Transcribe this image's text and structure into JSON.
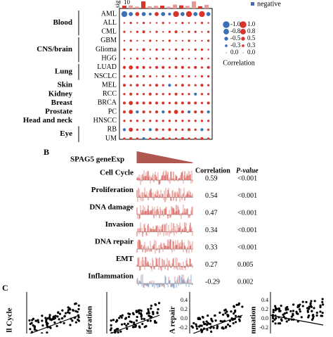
{
  "panel_a": {
    "sig_label": "sig",
    "top_tick": "10",
    "legend_negative": "negative",
    "groups": [
      {
        "label": "Blood",
        "rows": [
          {
            "label": "AML",
            "values": [
              -0.8,
              -0.5,
              0.5,
              -0.5,
              -0.3,
              0.5,
              -0.5,
              -0.3,
              0.8,
              -0.5,
              0.8,
              -0.5,
              0.8,
              -0.5
            ]
          },
          {
            "label": "ALL",
            "values": [
              0.1,
              0.2,
              0.1,
              0.2,
              0.1,
              0.1,
              0.2,
              0.1,
              0.1,
              0.2,
              0.1,
              0.1,
              0.2,
              0.1
            ]
          },
          {
            "label": "CML",
            "values": [
              0.2,
              0.1,
              0.2,
              0.3,
              0.1,
              0.2,
              0.1,
              0.2,
              0.3,
              0.1,
              0.2,
              0.2,
              0.1,
              0.2
            ]
          }
        ]
      },
      {
        "label": "CNS/brain",
        "rows": [
          {
            "label": "GBM",
            "values": [
              0.1,
              0.2,
              0.1,
              0.1,
              0.2,
              0.1,
              0.1,
              0.2,
              0.1,
              0.1,
              0.2,
              0.1,
              0.1,
              0.2
            ]
          },
          {
            "label": "Glioma",
            "values": [
              0.2,
              0.2,
              0.1,
              0.3,
              0.1,
              0.2,
              0.2,
              0.1,
              0.2,
              0.2,
              0.1,
              0.2,
              0.2,
              0.1
            ]
          },
          {
            "label": "HGG",
            "values": [
              0.1,
              0.1,
              0.2,
              0.1,
              0.1,
              0.2,
              0.1,
              0.1,
              0.2,
              0.1,
              0.1,
              0.1,
              0.2,
              0.1
            ]
          }
        ]
      },
      {
        "label": "Lung",
        "rows": [
          {
            "label": "LUAD",
            "values": [
              0.3,
              0.5,
              0.3,
              0.3,
              0.2,
              0.3,
              0.3,
              0.2,
              0.3,
              0.3,
              0.2,
              0.3,
              0.2,
              0.3
            ]
          },
          {
            "label": "NSCLC",
            "values": [
              0.2,
              0.3,
              0.2,
              0.2,
              0.2,
              0.1,
              0.2,
              0.2,
              0.1,
              0.2,
              0.2,
              0.1,
              0.2,
              0.2
            ]
          }
        ]
      },
      {
        "label": "Skin",
        "rows": [
          {
            "label": "MEL",
            "values": [
              0.3,
              0.2,
              0.3,
              0.2,
              0.2,
              0.3,
              0.2,
              -0.3,
              0.2,
              0.3,
              0.2,
              0.2,
              0.3,
              0.2
            ]
          }
        ]
      },
      {
        "label": "Kidney",
        "rows": [
          {
            "label": "RCC",
            "values": [
              0.2,
              0.3,
              0.2,
              0.2,
              0.3,
              0.2,
              0.2,
              0.2,
              0.3,
              0.2,
              0.2,
              -0.3,
              0.2,
              0.2
            ]
          }
        ]
      },
      {
        "label": "Breast",
        "rows": [
          {
            "label": "BRCA",
            "values": [
              0.3,
              0.5,
              0.3,
              0.3,
              0.3,
              0.3,
              0.3,
              0.2,
              0.3,
              0.3,
              0.3,
              0.3,
              0.2,
              0.3
            ]
          }
        ]
      },
      {
        "label": "Prostate",
        "rows": [
          {
            "label": "PC",
            "values": [
              0.3,
              0.5,
              -0.3,
              0.3,
              0.2,
              0.3,
              -0.3,
              0.3,
              0.5,
              0.3,
              -0.3,
              0.3,
              0.3,
              -0.3
            ]
          }
        ]
      },
      {
        "label": "Head and neck",
        "rows": [
          {
            "label": "HNSCC",
            "values": [
              0.2,
              0.2,
              0.2,
              0.2,
              0.2,
              0.2,
              0.2,
              0.2,
              0.2,
              0.2,
              0.2,
              0.2,
              0.2,
              0.2
            ]
          }
        ]
      },
      {
        "label": "Eye",
        "rows": [
          {
            "label": "RB",
            "values": [
              -0.3,
              0.5,
              0.2,
              0.2,
              -0.3,
              0.3,
              0.2,
              0.3,
              0.2,
              0.2,
              0.3,
              0.2,
              -0.3,
              0.2
            ]
          },
          {
            "label": "UM",
            "values": [
              0.2,
              0.3,
              0.2,
              -0.3,
              0.2,
              0.2,
              0.3,
              0.2,
              0.2,
              0.3,
              0.2,
              0.2,
              0.3,
              0.2
            ]
          }
        ]
      }
    ],
    "legend": {
      "negative": [
        "-1.0",
        "-0.8",
        "-0.5",
        "-0.3",
        "0.0"
      ],
      "positive": [
        "1.0",
        "0.8",
        "0.5",
        "0.3",
        "0.0"
      ],
      "title": "Correlation"
    }
  },
  "panel_b": {
    "label": "B",
    "reference": "SPAG5 geneExp",
    "headers": {
      "correlation": "Correlation",
      "p_value": "P-value"
    },
    "rows": [
      {
        "name": "Cell Cycle",
        "correlation": "0.59",
        "p_value": "<0.001"
      },
      {
        "name": "Proliferation",
        "correlation": "0.54",
        "p_value": "<0.001"
      },
      {
        "name": "DNA damage",
        "correlation": "0.47",
        "p_value": "<0.001"
      },
      {
        "name": "Invasion",
        "correlation": "0.34",
        "p_value": "<0.001"
      },
      {
        "name": "DNA repair",
        "correlation": "0.33",
        "p_value": "<0.001"
      },
      {
        "name": "EMT",
        "correlation": "0.27",
        "p_value": "0.005"
      },
      {
        "name": "Inflammation",
        "correlation": "-0.29",
        "p_value": "0.002"
      }
    ]
  },
  "panel_c": {
    "label": "C",
    "plots": [
      {
        "ylabel": "ll Cycle",
        "ticks": []
      },
      {
        "ylabel": "iferation",
        "ticks": []
      },
      {
        "ylabel": "A repair",
        "ticks": [
          "0.4",
          "0.2",
          "0.0",
          "-0.2"
        ]
      },
      {
        "ylabel": "nmation",
        "ticks": [
          "0.4",
          "0.2",
          "0.0",
          "-0.2"
        ]
      }
    ]
  }
}
